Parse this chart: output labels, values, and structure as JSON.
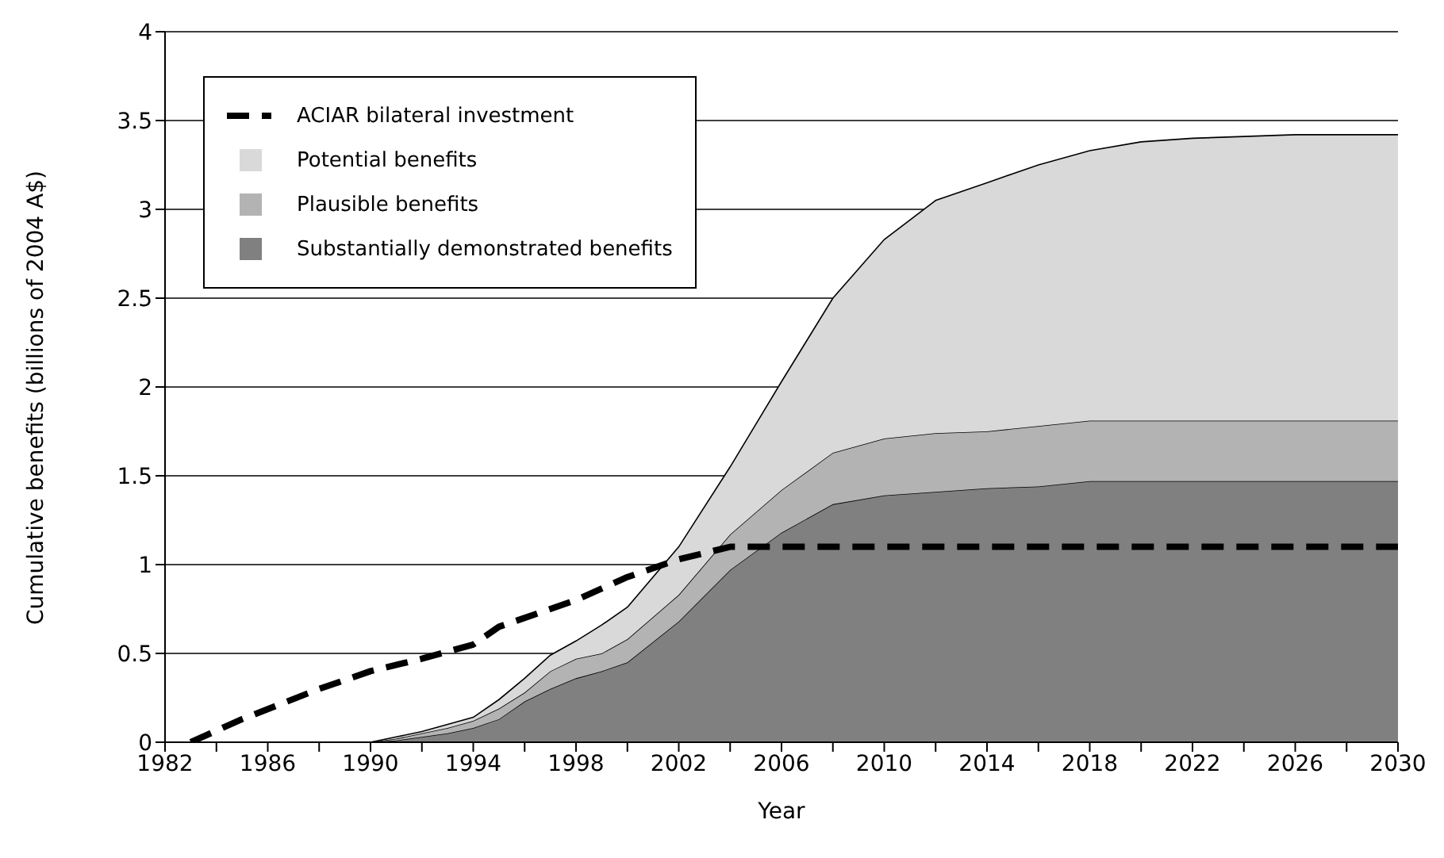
{
  "chart_data": {
    "type": "area",
    "stacked": true,
    "xlabel": "Year",
    "ylabel": "Cumulative benefits (billions of 2004 A$)",
    "x": [
      1990,
      1991,
      1992,
      1993,
      1994,
      1995,
      1996,
      1997,
      1998,
      1999,
      2000,
      2002,
      2004,
      2006,
      2008,
      2010,
      2012,
      2014,
      2016,
      2018,
      2020,
      2022,
      2024,
      2026,
      2028,
      2030
    ],
    "series": [
      {
        "name": "Substantially demonstrated benefits",
        "color": "#808080",
        "values": [
          0,
          0.01,
          0.03,
          0.05,
          0.08,
          0.13,
          0.23,
          0.3,
          0.36,
          0.4,
          0.45,
          0.68,
          0.97,
          1.18,
          1.34,
          1.39,
          1.41,
          1.43,
          1.44,
          1.47,
          1.47,
          1.47,
          1.47,
          1.47,
          1.47,
          1.47
        ]
      },
      {
        "name": "Plausible benefits",
        "color": "#b3b3b3",
        "values": [
          0,
          0.01,
          0.02,
          0.03,
          0.04,
          0.06,
          0.05,
          0.1,
          0.11,
          0.1,
          0.13,
          0.15,
          0.2,
          0.24,
          0.29,
          0.32,
          0.33,
          0.32,
          0.34,
          0.34,
          0.34,
          0.34,
          0.34,
          0.34,
          0.34,
          0.34
        ]
      },
      {
        "name": "Potential benefits",
        "color": "#d9d9d9",
        "values": [
          0,
          0.01,
          0.01,
          0.02,
          0.02,
          0.05,
          0.08,
          0.09,
          0.1,
          0.16,
          0.18,
          0.27,
          0.38,
          0.61,
          0.87,
          1.12,
          1.31,
          1.4,
          1.47,
          1.52,
          1.57,
          1.59,
          1.6,
          1.61,
          1.61,
          1.61
        ]
      },
      {
        "name": "ACIAR bilateral investment",
        "type": "line",
        "line_style": "dashed",
        "color": "#000000",
        "x": [
          1983,
          1985,
          1988,
          1990,
          1992,
          1994,
          1995,
          1998,
          2000,
          2002,
          2004,
          2030
        ],
        "values": [
          0,
          0.13,
          0.3,
          0.4,
          0.47,
          0.55,
          0.65,
          0.8,
          0.93,
          1.03,
          1.1,
          1.1
        ]
      }
    ],
    "xlim": [
      1982,
      2030
    ],
    "xticks": [
      1982,
      {
        "value": 1984,
        "label": null
      },
      1986,
      {
        "value": 1988,
        "label": null
      },
      1990,
      {
        "value": 1992,
        "label": null
      },
      1994,
      {
        "value": 1996,
        "label": null
      },
      1998,
      {
        "value": 2000,
        "label": null
      },
      2002,
      {
        "value": 2004,
        "label": null
      },
      2006,
      {
        "value": 2008,
        "label": null
      },
      2010,
      {
        "value": 2012,
        "label": null
      },
      2014,
      {
        "value": 2016,
        "label": null
      },
      2018,
      {
        "value": 2020,
        "label": null
      },
      2022,
      {
        "value": 2024,
        "label": null
      },
      2026,
      {
        "value": 2028,
        "label": null
      },
      2030
    ],
    "ylim": [
      0,
      4
    ],
    "yticks": [
      0,
      0.5,
      1,
      1.5,
      2,
      2.5,
      3,
      3.5,
      4
    ],
    "grid": "y",
    "legend": "top left",
    "marker": "none"
  }
}
